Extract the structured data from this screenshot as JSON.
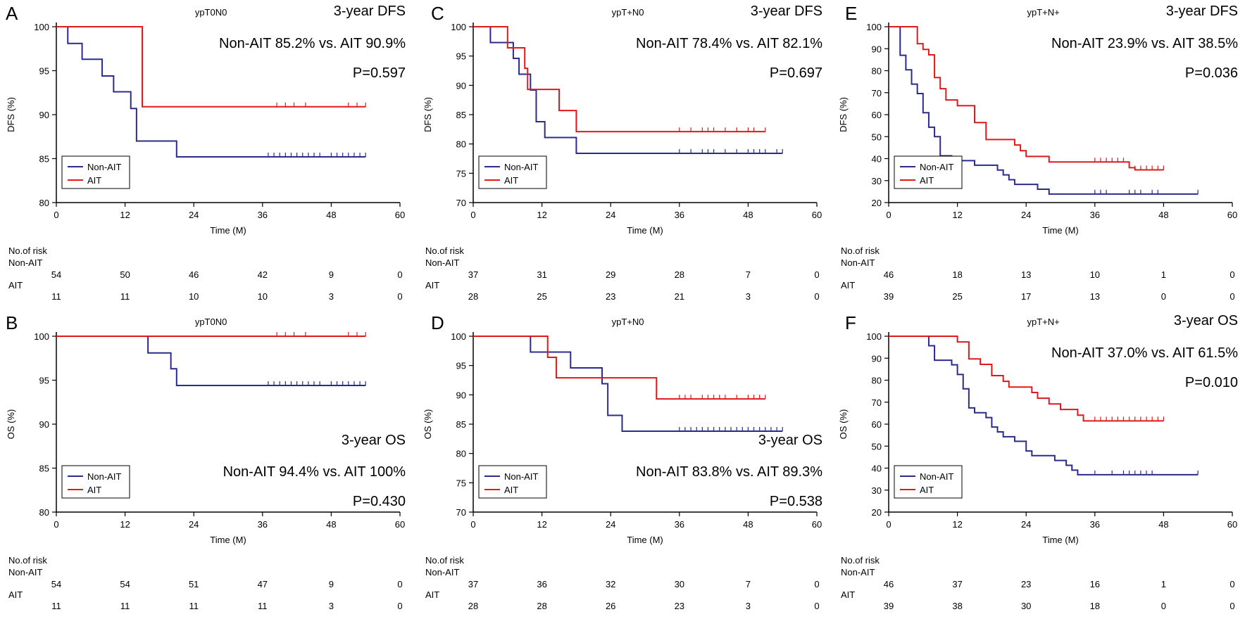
{
  "legend_labels": [
    "Non-AIT",
    "AIT"
  ],
  "colors": {
    "non_ait": "#2b2b8c",
    "ait": "#e0191a"
  },
  "risk_header": "No.of risk",
  "chart_data": [
    {
      "type": "line",
      "panel": "A",
      "subtitle": "ypT0N0",
      "ylabel": "DFS (%)",
      "xlabel": "Time (M)",
      "annot": [
        "3-year DFS",
        "Non-AIT 85.2% vs. AIT 90.9%",
        "P=0.597"
      ],
      "annot_pos": "top",
      "ylim": [
        80,
        100
      ],
      "yticks": [
        80,
        85,
        90,
        95,
        100
      ],
      "xlim": [
        0,
        60
      ],
      "xticks": [
        0,
        12,
        24,
        36,
        48,
        60
      ],
      "series": [
        {
          "name": "Non-AIT",
          "steps": [
            [
              0,
              100
            ],
            [
              2,
              98.1
            ],
            [
              4.5,
              96.3
            ],
            [
              8,
              94.4
            ],
            [
              10,
              92.6
            ],
            [
              13,
              90.7
            ],
            [
              14,
              87
            ],
            [
              21,
              85.2
            ],
            [
              54,
              85.2
            ]
          ],
          "censor": [
            37,
            38,
            39,
            40,
            41,
            42,
            43,
            44,
            45,
            46,
            48,
            49,
            50,
            51,
            52,
            53,
            54
          ]
        },
        {
          "name": "AIT",
          "steps": [
            [
              0,
              100
            ],
            [
              15,
              90.9
            ],
            [
              54,
              90.9
            ]
          ],
          "censor": [
            38.5,
            40,
            41.5,
            43.5,
            51,
            52.5,
            54
          ]
        }
      ],
      "risk": {
        "times": [
          0,
          12,
          24,
          36,
          48,
          60
        ],
        "non_ait": [
          "54",
          "50",
          "46",
          "42",
          "9",
          "0"
        ],
        "ait": [
          "11",
          "11",
          "10",
          "10",
          "3",
          "0"
        ]
      }
    },
    {
      "type": "line",
      "panel": "B",
      "subtitle": "ypT0N0",
      "ylabel": "OS (%)",
      "xlabel": "Time (M)",
      "annot": [
        "3-year OS",
        "Non-AIT 94.4% vs. AIT 100%",
        "P=0.430"
      ],
      "annot_pos": "bottom",
      "ylim": [
        80,
        100
      ],
      "yticks": [
        80,
        85,
        90,
        95,
        100
      ],
      "xlim": [
        0,
        60
      ],
      "xticks": [
        0,
        12,
        24,
        36,
        48,
        60
      ],
      "series": [
        {
          "name": "Non-AIT",
          "steps": [
            [
              0,
              100
            ],
            [
              16,
              98.1
            ],
            [
              20,
              96.3
            ],
            [
              21,
              94.4
            ],
            [
              54,
              94.4
            ]
          ],
          "censor": [
            37,
            38,
            39,
            40,
            41,
            42,
            43,
            44,
            45,
            46,
            48,
            49,
            50,
            51,
            52,
            53,
            54
          ]
        },
        {
          "name": "AIT",
          "steps": [
            [
              0,
              100
            ],
            [
              54,
              100
            ]
          ],
          "censor": [
            38.5,
            40,
            41.5,
            43.5,
            51,
            52.5,
            54
          ]
        }
      ],
      "risk": {
        "times": [
          0,
          12,
          24,
          36,
          48,
          60
        ],
        "non_ait": [
          "54",
          "54",
          "51",
          "47",
          "9",
          "0"
        ],
        "ait": [
          "11",
          "11",
          "11",
          "11",
          "3",
          "0"
        ]
      }
    },
    {
      "type": "line",
      "panel": "C",
      "subtitle": "ypT+N0",
      "ylabel": "DFS (%)",
      "xlabel": "Time (M)",
      "annot": [
        "3-year DFS",
        "Non-AIT 78.4% vs. AIT 82.1%",
        "P=0.697"
      ],
      "annot_pos": "top",
      "ylim": [
        70,
        100
      ],
      "yticks": [
        70,
        75,
        80,
        85,
        90,
        95,
        100
      ],
      "xlim": [
        0,
        60
      ],
      "xticks": [
        0,
        12,
        24,
        36,
        48,
        60
      ],
      "series": [
        {
          "name": "Non-AIT",
          "steps": [
            [
              0,
              100
            ],
            [
              3,
              97.3
            ],
            [
              7,
              94.6
            ],
            [
              8,
              91.9
            ],
            [
              10,
              89.2
            ],
            [
              11,
              83.8
            ],
            [
              12.5,
              81.1
            ],
            [
              18,
              78.4
            ],
            [
              54,
              78.4
            ]
          ],
          "censor": [
            36,
            38,
            40,
            41,
            42,
            44,
            46,
            48,
            49,
            50,
            51,
            53,
            54
          ]
        },
        {
          "name": "AIT",
          "steps": [
            [
              0,
              100
            ],
            [
              6,
              96.4
            ],
            [
              9,
              92.9
            ],
            [
              9.5,
              89.3
            ],
            [
              15,
              85.7
            ],
            [
              18,
              82.1
            ],
            [
              51,
              82.1
            ]
          ],
          "censor": [
            36,
            38,
            40,
            41,
            42,
            44,
            46,
            48,
            49,
            51
          ]
        }
      ],
      "risk": {
        "times": [
          0,
          12,
          24,
          36,
          48,
          60
        ],
        "non_ait": [
          "37",
          "31",
          "29",
          "28",
          "7",
          "0"
        ],
        "ait": [
          "28",
          "25",
          "23",
          "21",
          "3",
          "0"
        ]
      }
    },
    {
      "type": "line",
      "panel": "D",
      "subtitle": "ypT+N0",
      "ylabel": "OS (%)",
      "xlabel": "Time (M)",
      "annot": [
        "3-year OS",
        "Non-AIT 83.8% vs. AIT 89.3%",
        "P=0.538"
      ],
      "annot_pos": "bottom",
      "ylim": [
        70,
        100
      ],
      "yticks": [
        70,
        75,
        80,
        85,
        90,
        95,
        100
      ],
      "xlim": [
        0,
        60
      ],
      "xticks": [
        0,
        12,
        24,
        36,
        48,
        60
      ],
      "series": [
        {
          "name": "Non-AIT",
          "steps": [
            [
              0,
              100
            ],
            [
              10,
              97.3
            ],
            [
              17,
              94.6
            ],
            [
              22.5,
              91.9
            ],
            [
              23.5,
              86.5
            ],
            [
              26,
              83.8
            ],
            [
              54,
              83.8
            ]
          ],
          "censor": [
            36,
            37,
            38,
            39,
            40,
            41,
            42,
            43,
            44,
            45,
            46,
            47,
            48,
            49,
            50,
            51,
            52,
            53,
            54
          ]
        },
        {
          "name": "AIT",
          "steps": [
            [
              0,
              100
            ],
            [
              13,
              96.4
            ],
            [
              14.5,
              92.9
            ],
            [
              32,
              89.3
            ],
            [
              51,
              89.3
            ]
          ],
          "censor": [
            36,
            37,
            38,
            40,
            41,
            42,
            43,
            44,
            46,
            48,
            49,
            50,
            51
          ]
        }
      ],
      "risk": {
        "times": [
          0,
          12,
          24,
          36,
          48,
          60
        ],
        "non_ait": [
          "37",
          "36",
          "32",
          "30",
          "7",
          "0"
        ],
        "ait": [
          "28",
          "28",
          "26",
          "23",
          "3",
          "0"
        ]
      }
    },
    {
      "type": "line",
      "panel": "E",
      "subtitle": "ypT+N+",
      "ylabel": "DFS (%)",
      "xlabel": "Time (M)",
      "annot": [
        "3-year DFS",
        "Non-AIT 23.9% vs. AIT 38.5%",
        "P=0.036"
      ],
      "annot_pos": "top",
      "ylim": [
        20,
        100
      ],
      "yticks": [
        20,
        30,
        40,
        50,
        60,
        70,
        80,
        90,
        100
      ],
      "xlim": [
        0,
        60
      ],
      "xticks": [
        0,
        12,
        24,
        36,
        48,
        60
      ],
      "series": [
        {
          "name": "Non-AIT",
          "steps": [
            [
              0,
              100
            ],
            [
              2,
              87
            ],
            [
              3,
              80.4
            ],
            [
              4,
              73.9
            ],
            [
              5,
              69.6
            ],
            [
              6,
              60.9
            ],
            [
              7,
              54.3
            ],
            [
              8,
              50
            ],
            [
              9,
              41.3
            ],
            [
              11,
              39.1
            ],
            [
              15,
              37
            ],
            [
              19,
              34.8
            ],
            [
              20,
              32.6
            ],
            [
              21,
              30.4
            ],
            [
              22,
              28.3
            ],
            [
              26,
              26.1
            ],
            [
              28,
              23.9
            ],
            [
              54,
              23.9
            ]
          ],
          "censor": [
            36,
            37,
            38,
            42,
            43,
            44,
            46,
            47,
            54
          ]
        },
        {
          "name": "AIT",
          "steps": [
            [
              0,
              100
            ],
            [
              5,
              92.3
            ],
            [
              6,
              89.7
            ],
            [
              7,
              87.2
            ],
            [
              8,
              76.9
            ],
            [
              9,
              71.8
            ],
            [
              10,
              66.7
            ],
            [
              12,
              64.1
            ],
            [
              15,
              56.4
            ],
            [
              17,
              48.7
            ],
            [
              22,
              46.2
            ],
            [
              23,
              43.6
            ],
            [
              24,
              41
            ],
            [
              28,
              38.5
            ],
            [
              42,
              35.9
            ],
            [
              43,
              34.9
            ],
            [
              48,
              34.9
            ]
          ],
          "censor": [
            36,
            37,
            38,
            39,
            40,
            41,
            43,
            44,
            45,
            46,
            47,
            48
          ]
        }
      ],
      "risk": {
        "times": [
          0,
          12,
          24,
          36,
          48,
          60
        ],
        "non_ait": [
          "46",
          "18",
          "13",
          "10",
          "1",
          "0"
        ],
        "ait": [
          "39",
          "25",
          "17",
          "13",
          "0",
          "0"
        ]
      }
    },
    {
      "type": "line",
      "panel": "F",
      "subtitle": "ypT+N+",
      "ylabel": "OS (%)",
      "xlabel": "Time (M)",
      "annot": [
        "3-year OS",
        "Non-AIT 37.0% vs. AIT 61.5%",
        "P=0.010"
      ],
      "annot_pos": "top",
      "ylim": [
        20,
        100
      ],
      "yticks": [
        20,
        30,
        40,
        50,
        60,
        70,
        80,
        90,
        100
      ],
      "xlim": [
        0,
        60
      ],
      "xticks": [
        0,
        12,
        24,
        36,
        48,
        60
      ],
      "series": [
        {
          "name": "Non-AIT",
          "steps": [
            [
              0,
              100
            ],
            [
              7,
              95.7
            ],
            [
              8,
              89.1
            ],
            [
              11,
              87
            ],
            [
              12,
              82.6
            ],
            [
              13,
              76.1
            ],
            [
              14,
              67.4
            ],
            [
              15,
              65.2
            ],
            [
              17,
              63
            ],
            [
              18,
              58.7
            ],
            [
              19,
              56.5
            ],
            [
              20,
              54.3
            ],
            [
              22,
              52.2
            ],
            [
              24,
              47.8
            ],
            [
              25,
              45.7
            ],
            [
              29,
              43.5
            ],
            [
              31,
              41.3
            ],
            [
              32,
              39.1
            ],
            [
              33,
              37
            ],
            [
              54,
              37
            ]
          ],
          "censor": [
            36,
            39,
            41,
            42,
            43,
            44,
            45,
            46,
            54
          ]
        },
        {
          "name": "AIT",
          "steps": [
            [
              0,
              100
            ],
            [
              12,
              97.4
            ],
            [
              14,
              89.7
            ],
            [
              16,
              87.2
            ],
            [
              18,
              82.1
            ],
            [
              20,
              79.5
            ],
            [
              21,
              76.9
            ],
            [
              25,
              74.4
            ],
            [
              26,
              71.8
            ],
            [
              28,
              69.2
            ],
            [
              30,
              66.7
            ],
            [
              33,
              64.1
            ],
            [
              34,
              61.5
            ],
            [
              48,
              61.5
            ]
          ],
          "censor": [
            36,
            37,
            38,
            39,
            40,
            41,
            42,
            43,
            44,
            45,
            46,
            47,
            48
          ]
        }
      ],
      "risk": {
        "times": [
          0,
          12,
          24,
          36,
          48,
          60
        ],
        "non_ait": [
          "46",
          "37",
          "23",
          "16",
          "1",
          "0"
        ],
        "ait": [
          "39",
          "38",
          "30",
          "18",
          "0",
          "0"
        ]
      }
    }
  ]
}
